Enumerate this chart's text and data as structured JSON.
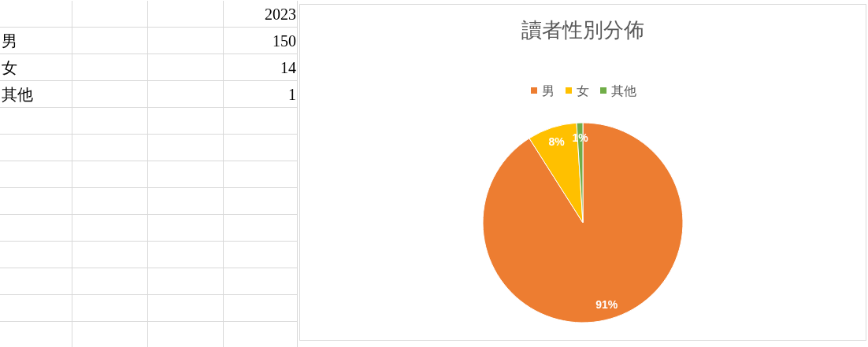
{
  "chart_data": {
    "type": "pie",
    "title": "讀者性別分佈",
    "annotations": [
      "2023",
      "150",
      "14",
      "1"
    ],
    "categories": [
      "男",
      "女",
      "其他"
    ],
    "values": [
      91,
      8,
      1
    ],
    "colors": [
      "#ed7d31",
      "#ffc000",
      "#70ad47"
    ],
    "value_labels": [
      "91%",
      "8%",
      "1%"
    ],
    "legend": "top"
  }
}
